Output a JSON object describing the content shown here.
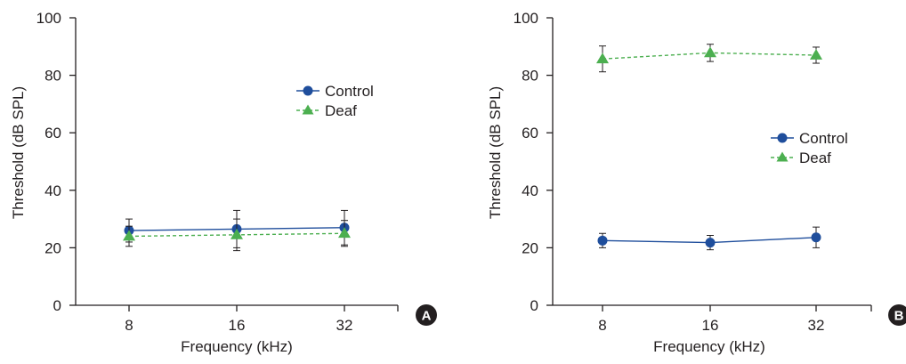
{
  "chart_data": [
    {
      "type": "line",
      "panel_label": "A",
      "xlabel": "Frequency (kHz)",
      "ylabel": "Threshold (dB SPL)",
      "categories": [
        "8",
        "16",
        "32"
      ],
      "ylim": [
        0,
        100
      ],
      "yticks": [
        "0",
        "20",
        "40",
        "60",
        "80",
        "100"
      ],
      "grid": false,
      "legend_position": "top-right",
      "series": [
        {
          "name": "Control",
          "values": [
            26.0,
            26.5,
            27.0
          ],
          "errors": [
            4.0,
            6.5,
            6.0
          ],
          "color": "#1f4e9c",
          "marker": "circle",
          "line": "solid"
        },
        {
          "name": "Deaf",
          "values": [
            24.0,
            24.5,
            25.0
          ],
          "errors": [
            3.5,
            5.5,
            4.5
          ],
          "color": "#4caf50",
          "marker": "triangle",
          "line": "dashed"
        }
      ]
    },
    {
      "type": "line",
      "panel_label": "B",
      "xlabel": "Frequency (kHz)",
      "ylabel": "Threshold (dB SPL)",
      "categories": [
        "8",
        "16",
        "32"
      ],
      "ylim": [
        0,
        100
      ],
      "yticks": [
        "0",
        "20",
        "40",
        "60",
        "80",
        "100"
      ],
      "grid": false,
      "legend_position": "center-right",
      "series": [
        {
          "name": "Control",
          "values": [
            22.5,
            21.8,
            23.6
          ],
          "errors": [
            2.5,
            2.5,
            3.6
          ],
          "color": "#1f4e9c",
          "marker": "circle",
          "line": "solid"
        },
        {
          "name": "Deaf",
          "values": [
            85.7,
            87.8,
            87.0
          ],
          "errors": [
            4.5,
            3.0,
            2.8
          ],
          "color": "#4caf50",
          "marker": "triangle",
          "line": "dashed"
        }
      ]
    }
  ]
}
